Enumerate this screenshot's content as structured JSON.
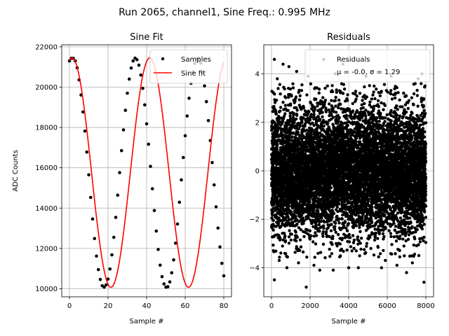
{
  "figure": {
    "suptitle": "Run 2065, channel1, Sine Freq.: 0.995 MHz"
  },
  "chart_data": [
    {
      "type": "line",
      "title": "Sine Fit",
      "xlabel": "Sample #",
      "ylabel": "ADC Counts",
      "xlim": [
        -4,
        84
      ],
      "ylim": [
        9600,
        22100
      ],
      "xticks": [
        0,
        20,
        40,
        60,
        80
      ],
      "yticks": [
        10000,
        12000,
        14000,
        16000,
        18000,
        20000,
        22000
      ],
      "grid": true,
      "legend_position": "top-right",
      "series": [
        {
          "name": "Samples",
          "kind": "scatter",
          "color": "#000000",
          "x": [
            0,
            1,
            2,
            3,
            4,
            5,
            6,
            7,
            8,
            9,
            10,
            11,
            12,
            13,
            14,
            15,
            16,
            17,
            18,
            19,
            20,
            21,
            22,
            23,
            24,
            25,
            26,
            27,
            28,
            29,
            30,
            31,
            32,
            33,
            34,
            35,
            36,
            37,
            38,
            39,
            40,
            41,
            42,
            43,
            44,
            45,
            46,
            47,
            48,
            49,
            50,
            51,
            52,
            53,
            54,
            55,
            56,
            57,
            58,
            59,
            60,
            61,
            62,
            63,
            64,
            65,
            66,
            67,
            68,
            69,
            70,
            71,
            72,
            73,
            74,
            75,
            76,
            77,
            78,
            79,
            80
          ],
          "y": [
            21300,
            21430,
            21430,
            21300,
            20960,
            20360,
            19610,
            18770,
            17820,
            16780,
            15650,
            14530,
            13460,
            12490,
            11620,
            10950,
            10460,
            10150,
            10080,
            10190,
            10480,
            10980,
            11680,
            12550,
            13540,
            14640,
            15760,
            16850,
            17880,
            18850,
            19700,
            20400,
            20950,
            21300,
            21440,
            21360,
            21090,
            20600,
            19940,
            19120,
            18180,
            17170,
            16070,
            14960,
            13880,
            12860,
            11950,
            11170,
            10600,
            10240,
            10080,
            10100,
            10340,
            10790,
            11430,
            12260,
            13210,
            14290,
            15400,
            16510,
            17590,
            18570,
            19450,
            20190,
            20760,
            21180,
            21400,
            21420,
            21190,
            20730,
            20060,
            19280,
            18340,
            17350,
            16260,
            15150,
            14060,
            13010,
            12070,
            11260,
            10640
          ]
        },
        {
          "name": "Sine fit",
          "kind": "line",
          "color": "#ff0000",
          "amplitude": 5690,
          "offset": 15760,
          "period_samples": 40.2,
          "phase_peak_sample": 1.4
        }
      ]
    },
    {
      "type": "scatter",
      "title": "Residuals",
      "xlabel": "Sample #",
      "ylabel": "",
      "xlim": [
        -400,
        8400
      ],
      "ylim": [
        -5.2,
        5.2
      ],
      "xticks": [
        0,
        2000,
        4000,
        6000,
        8000
      ],
      "yticks": [
        -4,
        -2,
        0,
        2,
        4
      ],
      "grid": true,
      "legend_position": "top-right",
      "series": [
        {
          "name": "Residuals",
          "color": "#000000",
          "n_points": 8000,
          "mean": -0.0,
          "sigma": 1.29,
          "x_range": [
            0,
            8000
          ],
          "outliers": [
            [
              150,
              4.6
            ],
            [
              900,
              4.3
            ],
            [
              2700,
              4.6
            ],
            [
              600,
              4.4
            ],
            [
              3700,
              4.4
            ],
            [
              1800,
              -4.8
            ],
            [
              150,
              -4.5
            ],
            [
              7900,
              -4.6
            ],
            [
              7000,
              -4.2
            ],
            [
              5700,
              -4.0
            ],
            [
              4500,
              -4.0
            ],
            [
              3200,
              -4.1
            ],
            [
              800,
              -4.0
            ],
            [
              2500,
              -4.1
            ],
            [
              6500,
              -3.9
            ],
            [
              1400,
              -3.8
            ],
            [
              5200,
              4.1
            ],
            [
              7600,
              3.8
            ],
            [
              4900,
              3.9
            ],
            [
              3300,
              4.0
            ],
            [
              6200,
              3.9
            ],
            [
              300,
              3.8
            ],
            [
              1300,
              4.1
            ],
            [
              7300,
              -3.8
            ],
            [
              4000,
              -4.0
            ],
            [
              1900,
              3.9
            ],
            [
              5900,
              -3.7
            ],
            [
              2200,
              -3.9
            ],
            [
              7800,
              4.0
            ],
            [
              400,
              -3.7
            ]
          ]
        }
      ],
      "legend_text": {
        "label": "Residuals",
        "stats": "μ = -0.0, σ = 1.29"
      }
    }
  ]
}
